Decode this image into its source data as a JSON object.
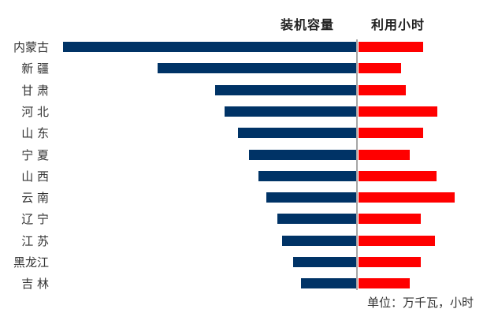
{
  "headers": {
    "capacity": "装机容量",
    "hours": "利用小时"
  },
  "unit_note": "单位：万千瓦，小时",
  "colors": {
    "capacity": "#003366",
    "hours": "#ff0000",
    "axis": "#a6a6a6"
  },
  "chart_data": {
    "type": "bar",
    "orientation": "horizontal-diverging",
    "title": "",
    "legend": [
      "装机容量",
      "利用小时"
    ],
    "note": "单位：万千瓦，小时 — no numeric axis shown; values are relative bar lengths in pixels",
    "categories": [
      "内蒙古",
      "新 疆",
      "甘 肃",
      "河 北",
      "山 东",
      "宁 夏",
      "山 西",
      "云 南",
      "辽 宁",
      "江 苏",
      "黑龙江",
      "吉 林"
    ],
    "series": [
      {
        "name": "装机容量",
        "side": "left",
        "values": [
          372,
          252,
          179,
          167,
          150,
          136,
          124,
          114,
          100,
          94,
          80,
          70
        ]
      },
      {
        "name": "利用小时",
        "side": "right",
        "values": [
          82,
          54,
          60,
          100,
          82,
          65,
          99,
          122,
          79,
          97,
          79,
          65
        ]
      }
    ],
    "grid": false
  }
}
